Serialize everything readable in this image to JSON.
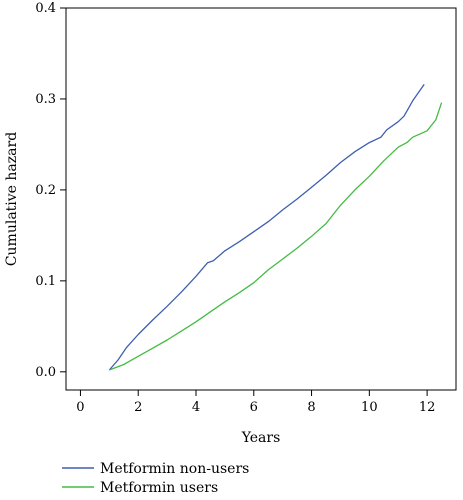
{
  "chart_data": {
    "type": "line",
    "title": "",
    "xlabel": "Years",
    "ylabel": "Cumulative hazard",
    "xlim": [
      -0.5,
      13
    ],
    "ylim": [
      -0.02,
      0.4
    ],
    "xticks": [
      0,
      2,
      4,
      6,
      8,
      10,
      12
    ],
    "yticks": [
      0.0,
      0.1,
      0.2,
      0.3,
      0.4
    ],
    "xtick_labels": [
      "0",
      "2",
      "4",
      "6",
      "8",
      "10",
      "12"
    ],
    "ytick_labels": [
      "0.0",
      "0.1",
      "0.2",
      "0.3",
      "0.4"
    ],
    "grid": false,
    "legend_position": "bottom-left",
    "series": [
      {
        "name": "Metformin non-users",
        "color": "#3f5fb0",
        "x": [
          1.0,
          1.3,
          1.6,
          2.0,
          2.5,
          3.0,
          3.5,
          4.0,
          4.4,
          4.6,
          5.0,
          5.5,
          6.0,
          6.5,
          7.0,
          7.5,
          8.0,
          8.5,
          9.0,
          9.5,
          10.0,
          10.4,
          10.6,
          11.0,
          11.2,
          11.5,
          11.9
        ],
        "y": [
          0.002,
          0.013,
          0.027,
          0.041,
          0.057,
          0.072,
          0.088,
          0.105,
          0.12,
          0.122,
          0.133,
          0.143,
          0.154,
          0.165,
          0.178,
          0.19,
          0.203,
          0.216,
          0.23,
          0.242,
          0.252,
          0.258,
          0.266,
          0.275,
          0.281,
          0.298,
          0.316
        ]
      },
      {
        "name": "Metformin users",
        "color": "#44bb44",
        "x": [
          1.0,
          1.5,
          2.0,
          2.5,
          3.0,
          3.5,
          4.0,
          4.5,
          5.0,
          5.5,
          6.0,
          6.5,
          7.0,
          7.5,
          8.0,
          8.5,
          9.0,
          9.5,
          10.0,
          10.5,
          11.0,
          11.3,
          11.5,
          12.0,
          12.3,
          12.5
        ],
        "y": [
          0.002,
          0.008,
          0.017,
          0.026,
          0.035,
          0.045,
          0.055,
          0.066,
          0.077,
          0.087,
          0.098,
          0.112,
          0.124,
          0.136,
          0.149,
          0.163,
          0.183,
          0.2,
          0.215,
          0.232,
          0.247,
          0.252,
          0.258,
          0.265,
          0.277,
          0.296
        ]
      }
    ]
  }
}
